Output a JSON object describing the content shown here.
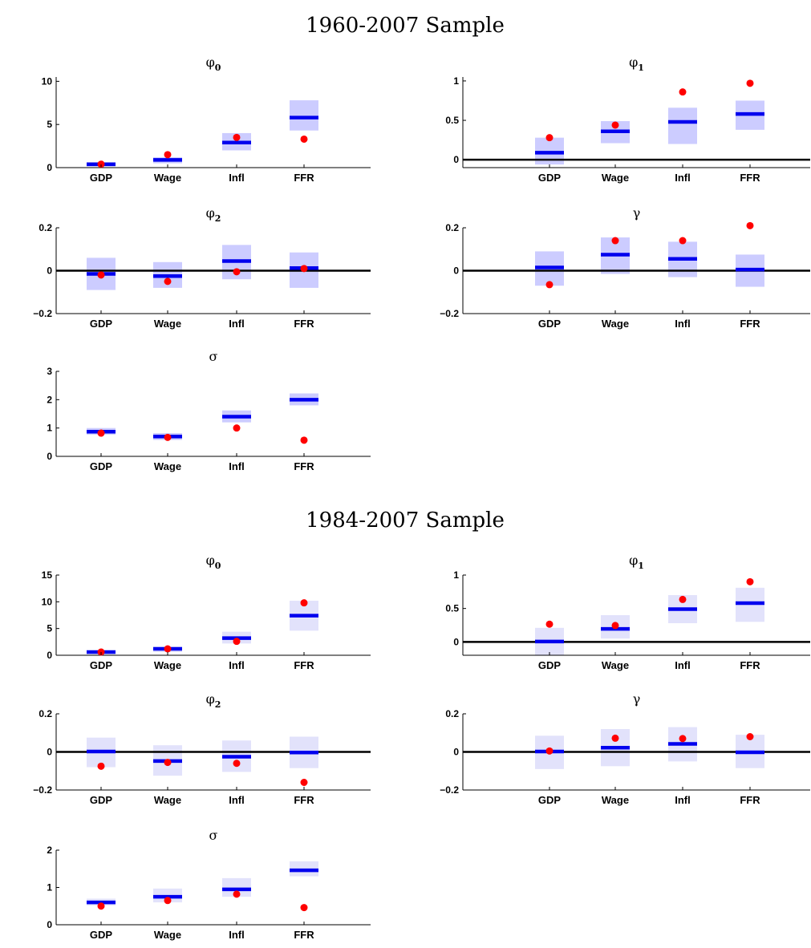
{
  "sections": [
    {
      "title": "1960-2007 Sample",
      "band_color": "#ccccff",
      "panels": [
        {
          "title_sym": "φ",
          "title_sub": "0",
          "yticks": [
            0,
            5,
            10
          ],
          "tick_labels": [
            "0",
            "5",
            "10"
          ],
          "ylim": [
            0,
            10.5
          ],
          "zero_line": false,
          "categories": [
            "GDP",
            "Wage",
            "Infl",
            "FFR"
          ],
          "median": [
            0.4,
            0.9,
            2.9,
            5.8
          ],
          "band_low": [
            0.1,
            0.5,
            2.0,
            4.3
          ],
          "band_high": [
            0.6,
            1.2,
            4.0,
            7.8
          ],
          "point": [
            0.4,
            1.5,
            3.5,
            3.3
          ]
        },
        {
          "title_sym": "φ",
          "title_sub": "1",
          "yticks": [
            0,
            0.5,
            1
          ],
          "tick_labels": [
            "0",
            "0.5",
            "1"
          ],
          "ylim": [
            -0.1,
            1.05
          ],
          "zero_line": true,
          "categories": [
            "GDP",
            "Wage",
            "Infl",
            "FFR"
          ],
          "median": [
            0.09,
            0.36,
            0.48,
            0.58
          ],
          "band_low": [
            -0.06,
            0.21,
            0.2,
            0.38
          ],
          "band_high": [
            0.28,
            0.49,
            0.66,
            0.75
          ],
          "point": [
            0.28,
            0.44,
            0.86,
            0.97
          ]
        },
        {
          "title_sym": "φ",
          "title_sub": "2",
          "yticks": [
            -0.2,
            0,
            0.2
          ],
          "tick_labels": [
            "−0.2",
            "0",
            "0.2"
          ],
          "ylim": [
            -0.2,
            0.2
          ],
          "zero_line": true,
          "categories": [
            "GDP",
            "Wage",
            "Infl",
            "FFR"
          ],
          "median": [
            -0.015,
            -0.025,
            0.045,
            0.012
          ],
          "band_low": [
            -0.09,
            -0.08,
            -0.04,
            -0.08
          ],
          "band_high": [
            0.06,
            0.04,
            0.12,
            0.085
          ],
          "point": [
            -0.02,
            -0.05,
            -0.005,
            0.01
          ]
        },
        {
          "title_sym": "γ",
          "title_sub": "",
          "yticks": [
            -0.2,
            0,
            0.2
          ],
          "tick_labels": [
            "−0.2",
            "0",
            "0.2"
          ],
          "ylim": [
            -0.2,
            0.2
          ],
          "zero_line": true,
          "categories": [
            "GDP",
            "Wage",
            "Infl",
            "FFR"
          ],
          "median": [
            0.015,
            0.075,
            0.055,
            0.005
          ],
          "band_low": [
            -0.07,
            -0.015,
            -0.03,
            -0.075
          ],
          "band_high": [
            0.09,
            0.155,
            0.135,
            0.075
          ],
          "point": [
            -0.065,
            0.14,
            0.14,
            0.21
          ]
        },
        {
          "title_sym": "σ",
          "title_sub": "",
          "yticks": [
            0,
            1,
            2,
            3
          ],
          "tick_labels": [
            "0",
            "1",
            "2",
            "3"
          ],
          "ylim": [
            0,
            3
          ],
          "zero_line": false,
          "categories": [
            "GDP",
            "Wage",
            "Infl",
            "FFR"
          ],
          "median": [
            0.87,
            0.7,
            1.4,
            2.0
          ],
          "band_low": [
            0.77,
            0.58,
            1.2,
            1.8
          ],
          "band_high": [
            1.0,
            0.82,
            1.62,
            2.22
          ],
          "point": [
            0.82,
            0.67,
            1.0,
            0.57
          ]
        }
      ]
    },
    {
      "title": "1984-2007 Sample",
      "band_color": "#e2e2fb",
      "panels": [
        {
          "title_sym": "φ",
          "title_sub": "0",
          "yticks": [
            0,
            5,
            10,
            15
          ],
          "tick_labels": [
            "0",
            "5",
            "10",
            "15"
          ],
          "ylim": [
            0,
            15
          ],
          "zero_line": false,
          "categories": [
            "GDP",
            "Wage",
            "Infl",
            "FFR"
          ],
          "median": [
            0.6,
            1.2,
            3.2,
            7.4
          ],
          "band_low": [
            0.2,
            0.6,
            2.2,
            4.6
          ],
          "band_high": [
            0.9,
            1.6,
            4.4,
            10.2
          ],
          "point": [
            0.6,
            1.2,
            2.6,
            9.8
          ]
        },
        {
          "title_sym": "φ",
          "title_sub": "1",
          "yticks": [
            0,
            0.5,
            1
          ],
          "tick_labels": [
            "0",
            "0.5",
            "1"
          ],
          "ylim": [
            -0.2,
            1.0
          ],
          "zero_line": true,
          "categories": [
            "GDP",
            "Wage",
            "Infl",
            "FFR"
          ],
          "median": [
            0.005,
            0.195,
            0.49,
            0.58
          ],
          "band_low": [
            -0.2,
            0.05,
            0.28,
            0.3
          ],
          "band_high": [
            0.21,
            0.4,
            0.7,
            0.81
          ],
          "point": [
            0.265,
            0.245,
            0.635,
            0.9
          ]
        },
        {
          "title_sym": "φ",
          "title_sub": "2",
          "yticks": [
            -0.2,
            0,
            0.2
          ],
          "tick_labels": [
            "−0.2",
            "0",
            "0.2"
          ],
          "ylim": [
            -0.2,
            0.2
          ],
          "zero_line": true,
          "categories": [
            "GDP",
            "Wage",
            "Infl",
            "FFR"
          ],
          "median": [
            0.002,
            -0.048,
            -0.025,
            -0.003
          ],
          "band_low": [
            -0.08,
            -0.125,
            -0.105,
            -0.085
          ],
          "band_high": [
            0.075,
            0.035,
            0.06,
            0.08
          ],
          "point": [
            -0.075,
            -0.055,
            -0.06,
            -0.16
          ]
        },
        {
          "title_sym": "γ",
          "title_sub": "",
          "yticks": [
            -0.2,
            0,
            0.2
          ],
          "tick_labels": [
            "−0.2",
            "0",
            "0.2"
          ],
          "ylim": [
            -0.2,
            0.2
          ],
          "zero_line": true,
          "categories": [
            "GDP",
            "Wage",
            "Infl",
            "FFR"
          ],
          "median": [
            0.002,
            0.022,
            0.042,
            -0.002
          ],
          "band_low": [
            -0.09,
            -0.075,
            -0.05,
            -0.085
          ],
          "band_high": [
            0.085,
            0.12,
            0.13,
            0.09
          ],
          "point": [
            0.005,
            0.072,
            0.07,
            0.08
          ]
        },
        {
          "title_sym": "σ",
          "title_sub": "",
          "yticks": [
            0,
            1,
            2
          ],
          "tick_labels": [
            "0",
            "1",
            "2"
          ],
          "ylim": [
            0,
            2
          ],
          "zero_line": false,
          "categories": [
            "GDP",
            "Wage",
            "Infl",
            "FFR"
          ],
          "median": [
            0.6,
            0.75,
            0.95,
            1.46
          ],
          "band_low": [
            0.52,
            0.6,
            0.75,
            1.3
          ],
          "band_high": [
            0.7,
            0.97,
            1.25,
            1.7
          ],
          "point": [
            0.5,
            0.65,
            0.82,
            0.46
          ]
        }
      ]
    }
  ],
  "colors": {
    "median": "#0000ee",
    "point": "#ff0000",
    "axis": "#000000"
  },
  "chart_data": [
    {
      "type": "scatter",
      "title": "φ0",
      "categories": [
        "GDP",
        "Wage",
        "Infl",
        "FFR"
      ],
      "ylim": [
        0,
        10.5
      ],
      "series": [
        {
          "values": [
            0.4,
            0.9,
            2.9,
            5.8
          ]
        },
        {
          "values": [
            0.4,
            1.5,
            3.5,
            3.3
          ]
        }
      ],
      "band": [
        [
          0.1,
          0.6
        ],
        [
          0.5,
          1.2
        ],
        [
          2.0,
          4.0
        ],
        [
          4.3,
          7.8
        ]
      ]
    },
    {
      "type": "scatter",
      "title": "φ1",
      "categories": [
        "GDP",
        "Wage",
        "Infl",
        "FFR"
      ],
      "ylim": [
        -0.1,
        1.05
      ],
      "series": [
        {
          "values": [
            0.09,
            0.36,
            0.48,
            0.58
          ]
        },
        {
          "values": [
            0.28,
            0.44,
            0.86,
            0.97
          ]
        }
      ],
      "band": [
        [
          -0.06,
          0.28
        ],
        [
          0.21,
          0.49
        ],
        [
          0.2,
          0.66
        ],
        [
          0.38,
          0.75
        ]
      ]
    },
    {
      "type": "scatter",
      "title": "φ2",
      "categories": [
        "GDP",
        "Wage",
        "Infl",
        "FFR"
      ],
      "ylim": [
        -0.2,
        0.2
      ],
      "series": [
        {
          "values": [
            -0.015,
            -0.025,
            0.045,
            0.012
          ]
        },
        {
          "values": [
            -0.02,
            -0.05,
            -0.005,
            0.01
          ]
        }
      ],
      "band": [
        [
          -0.09,
          0.06
        ],
        [
          -0.08,
          0.04
        ],
        [
          -0.04,
          0.12
        ],
        [
          -0.08,
          0.085
        ]
      ]
    },
    {
      "type": "scatter",
      "title": "γ",
      "categories": [
        "GDP",
        "Wage",
        "Infl",
        "FFR"
      ],
      "ylim": [
        -0.2,
        0.2
      ],
      "series": [
        {
          "values": [
            0.015,
            0.075,
            0.055,
            0.005
          ]
        },
        {
          "values": [
            -0.065,
            0.14,
            0.14,
            0.21
          ]
        }
      ],
      "band": [
        [
          -0.07,
          0.09
        ],
        [
          -0.015,
          0.155
        ],
        [
          -0.03,
          0.135
        ],
        [
          -0.075,
          0.075
        ]
      ]
    },
    {
      "type": "scatter",
      "title": "σ",
      "categories": [
        "GDP",
        "Wage",
        "Infl",
        "FFR"
      ],
      "ylim": [
        0,
        3
      ],
      "series": [
        {
          "values": [
            0.87,
            0.7,
            1.4,
            2.0
          ]
        },
        {
          "values": [
            0.82,
            0.67,
            1.0,
            0.57
          ]
        }
      ],
      "band": [
        [
          0.77,
          1.0
        ],
        [
          0.58,
          0.82
        ],
        [
          1.2,
          1.62
        ],
        [
          1.8,
          2.22
        ]
      ]
    },
    {
      "type": "scatter",
      "title": "φ0",
      "categories": [
        "GDP",
        "Wage",
        "Infl",
        "FFR"
      ],
      "ylim": [
        0,
        15
      ],
      "series": [
        {
          "values": [
            0.6,
            1.2,
            3.2,
            7.4
          ]
        },
        {
          "values": [
            0.6,
            1.2,
            2.6,
            9.8
          ]
        }
      ],
      "band": [
        [
          0.2,
          0.9
        ],
        [
          0.6,
          1.6
        ],
        [
          2.2,
          4.4
        ],
        [
          4.6,
          10.2
        ]
      ]
    },
    {
      "type": "scatter",
      "title": "φ1",
      "categories": [
        "GDP",
        "Wage",
        "Infl",
        "FFR"
      ],
      "ylim": [
        -0.2,
        1.0
      ],
      "series": [
        {
          "values": [
            0.005,
            0.195,
            0.49,
            0.58
          ]
        },
        {
          "values": [
            0.265,
            0.245,
            0.635,
            0.9
          ]
        }
      ],
      "band": [
        [
          -0.2,
          0.21
        ],
        [
          0.05,
          0.4
        ],
        [
          0.28,
          0.7
        ],
        [
          0.3,
          0.81
        ]
      ]
    },
    {
      "type": "scatter",
      "title": "φ2",
      "categories": [
        "GDP",
        "Wage",
        "Infl",
        "FFR"
      ],
      "ylim": [
        -0.2,
        0.2
      ],
      "series": [
        {
          "values": [
            0.002,
            -0.048,
            -0.025,
            -0.003
          ]
        },
        {
          "values": [
            -0.075,
            -0.055,
            -0.06,
            -0.16
          ]
        }
      ],
      "band": [
        [
          -0.08,
          0.075
        ],
        [
          -0.125,
          0.035
        ],
        [
          -0.105,
          0.06
        ],
        [
          -0.085,
          0.08
        ]
      ]
    },
    {
      "type": "scatter",
      "title": "γ",
      "categories": [
        "GDP",
        "Wage",
        "Infl",
        "FFR"
      ],
      "ylim": [
        -0.2,
        0.2
      ],
      "series": [
        {
          "values": [
            0.002,
            0.022,
            0.042,
            -0.002
          ]
        },
        {
          "values": [
            0.005,
            0.072,
            0.07,
            0.08
          ]
        }
      ],
      "band": [
        [
          -0.09,
          0.085
        ],
        [
          -0.075,
          0.12
        ],
        [
          -0.05,
          0.13
        ],
        [
          -0.085,
          0.09
        ]
      ]
    },
    {
      "type": "scatter",
      "title": "σ",
      "categories": [
        "GDP",
        "Wage",
        "Infl",
        "FFR"
      ],
      "ylim": [
        0,
        2
      ],
      "series": [
        {
          "values": [
            0.6,
            0.75,
            0.95,
            1.46
          ]
        },
        {
          "values": [
            0.5,
            0.65,
            0.82,
            0.46
          ]
        }
      ],
      "band": [
        [
          0.52,
          0.7
        ],
        [
          0.6,
          0.97
        ],
        [
          0.75,
          1.25
        ],
        [
          1.3,
          1.7
        ]
      ]
    }
  ]
}
